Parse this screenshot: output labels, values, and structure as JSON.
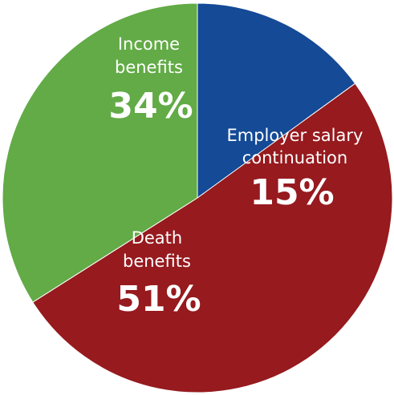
{
  "chart_data": {
    "type": "pie",
    "title": "",
    "slices": [
      {
        "label_lines": [
          "Employer salary",
          "continuation"
        ],
        "value": 15,
        "value_label": "15%",
        "color": "#144a96"
      },
      {
        "label_lines": [
          "Death",
          "benefits"
        ],
        "value": 51,
        "value_label": "51%",
        "color": "#961a1e"
      },
      {
        "label_lines": [
          "Income",
          "benefits"
        ],
        "value": 34,
        "value_label": "34%",
        "color": "#62ab46"
      }
    ]
  }
}
